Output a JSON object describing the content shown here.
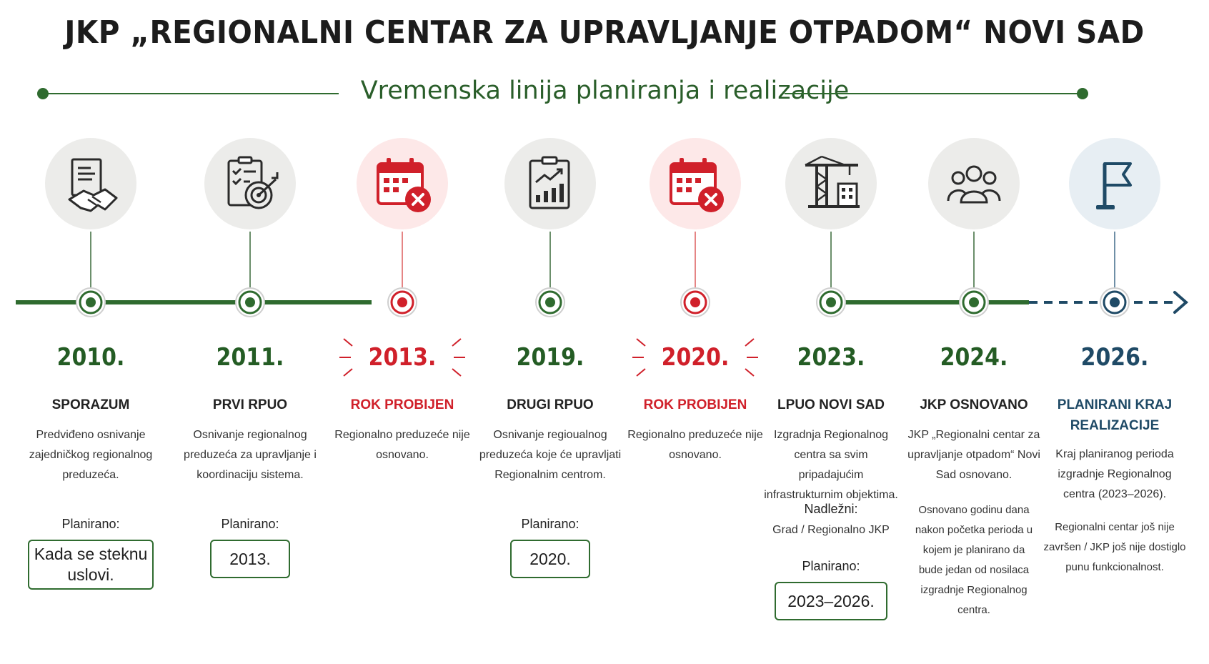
{
  "title": "JKP „REGIONALNI CENTAR ZA UPRAVLJANJE OTPADOM“ NOVI SAD",
  "subtitle": "Vremenska linija planiranja i realizacije",
  "colors": {
    "green": "#2f6b2f",
    "red": "#d0202a",
    "blue": "#1f4a66"
  },
  "planned_label": "Planirano:",
  "events": [
    {
      "year": "2010.",
      "label": "SPORAZUM",
      "status": "green",
      "icon": "handshake-document-icon",
      "description": "Predviđeno osnivanje zajedničkog regionalnog preduzeća.",
      "planned": "Kada se steknu uslovi."
    },
    {
      "year": "2011.",
      "label": "PRVI RPUO",
      "status": "green",
      "icon": "checklist-target-icon",
      "description": "Osnivanje regionalnog preduzeća za upravljanje i koordinaciju sistema.",
      "planned": "2013."
    },
    {
      "year": "2013.",
      "label": "ROK PROBIJEN",
      "status": "red",
      "icon": "calendar-missed-icon",
      "description": "Regionalno preduzeće nije osnovano."
    },
    {
      "year": "2019.",
      "label": "DRUGI RPUO",
      "status": "green",
      "icon": "clipboard-chart-icon",
      "description": "Osnivanje regioualnog preduzeća koje će upravljati Regionalnim centrom.",
      "planned": "2020."
    },
    {
      "year": "2020.",
      "label": "ROK PROBIJEN",
      "status": "red",
      "icon": "calendar-missed-icon",
      "description": "Regionalno preduzeće nije osnovano."
    },
    {
      "year": "2023.",
      "label": "LPUO NOVI SAD",
      "status": "green",
      "icon": "crane-building-icon",
      "description": "Izgradnja Regionalnog centra sa svim pripadajućim infrastrukturnim objektima.",
      "responsible_label": "Nadležni:",
      "responsible": "Grad / Regionalno JKP",
      "planned": "2023–2026."
    },
    {
      "year": "2024.",
      "label": "JKP OSNOVANO",
      "status": "green",
      "icon": "people-group-icon",
      "description": "JKP „Regionalni centar za upravljanje otpadom“ Novi Sad osnovano.",
      "note": "Osnovano godinu dana nakon početka perioda u kojem je planirano da bude jedan od nosilaca izgradnje Regionalnog centra."
    },
    {
      "year": "2026.",
      "label": "PLANIRANI KRAJ REALIZACIJE",
      "status": "blue",
      "icon": "flag-icon",
      "description": "Kraj planiranog perioda izgradnje Regionalnog centra (2023–2026).",
      "note": "Regionalni centar još nije završen / JKP još nije dostiglo punu funkcionalnost."
    }
  ]
}
